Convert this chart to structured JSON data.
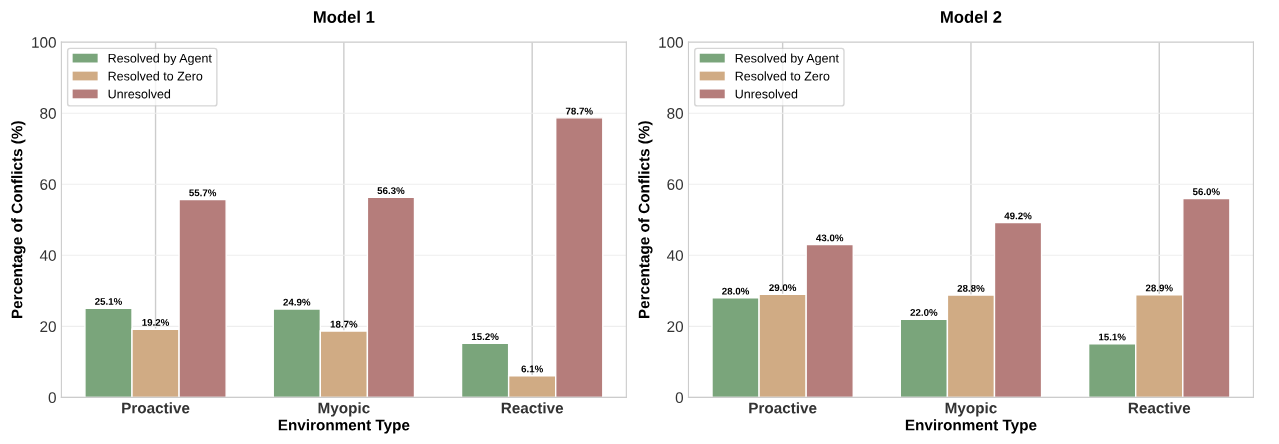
{
  "chart_data": [
    {
      "type": "bar",
      "title": "Model 1",
      "xlabel": "Environment Type",
      "ylabel": "Percentage of Conflicts (%)",
      "categories": [
        "Proactive",
        "Myopic",
        "Reactive"
      ],
      "ylim": [
        0,
        100
      ],
      "yticks": [
        0,
        20,
        40,
        60,
        80,
        100
      ],
      "grid": true,
      "legend": "top left",
      "series": [
        {
          "name": "Resolved by Agent",
          "color": "#7aa57b",
          "values": [
            25.1,
            24.9,
            15.2
          ],
          "value_labels": [
            "25.1%",
            "24.9%",
            "15.2%"
          ]
        },
        {
          "name": "Resolved to Zero",
          "color": "#d0ab84",
          "values": [
            19.2,
            18.7,
            6.1
          ],
          "value_labels": [
            "19.2%",
            "18.7%",
            "6.1%"
          ]
        },
        {
          "name": "Unresolved",
          "color": "#b57d7b",
          "values": [
            55.7,
            56.3,
            78.7
          ],
          "value_labels": [
            "55.7%",
            "56.3%",
            "78.7%"
          ]
        }
      ]
    },
    {
      "type": "bar",
      "title": "Model 2",
      "xlabel": "Environment Type",
      "ylabel": "Percentage of Conflicts (%)",
      "categories": [
        "Proactive",
        "Myopic",
        "Reactive"
      ],
      "ylim": [
        0,
        100
      ],
      "yticks": [
        0,
        20,
        40,
        60,
        80,
        100
      ],
      "grid": true,
      "legend": "top left",
      "series": [
        {
          "name": "Resolved by Agent",
          "color": "#7aa57b",
          "values": [
            28.0,
            22.0,
            15.1
          ],
          "value_labels": [
            "28.0%",
            "22.0%",
            "15.1%"
          ]
        },
        {
          "name": "Resolved to Zero",
          "color": "#d0ab84",
          "values": [
            29.0,
            28.8,
            28.9
          ],
          "value_labels": [
            "29.0%",
            "28.8%",
            "28.9%"
          ]
        },
        {
          "name": "Unresolved",
          "color": "#b57d7b",
          "values": [
            43.0,
            49.2,
            56.0
          ],
          "value_labels": [
            "43.0%",
            "49.2%",
            "56.0%"
          ]
        }
      ]
    }
  ]
}
